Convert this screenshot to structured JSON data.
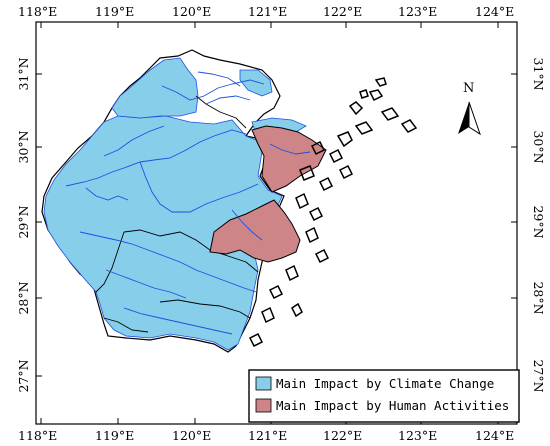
{
  "map": {
    "lon_ticks": [
      "118°E",
      "119°E",
      "120°E",
      "121°E",
      "122°E",
      "123°E",
      "124°E"
    ],
    "lat_ticks": [
      "31°N",
      "30°N",
      "29°N",
      "28°N",
      "27°N"
    ],
    "north_arrow_label": "N"
  },
  "legend": {
    "items": [
      {
        "label": "Main Impact by Climate Change",
        "color": "#87ceeb"
      },
      {
        "label": "Main Impact by Human Activities",
        "color": "#cd8587"
      }
    ]
  },
  "colors": {
    "climate": "#87ceeb",
    "human": "#cd8587",
    "river": "#1f4fe0",
    "outline": "#000000"
  }
}
